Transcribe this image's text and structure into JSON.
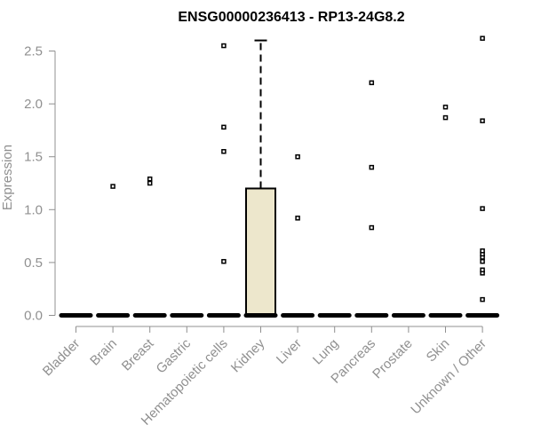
{
  "chart_data": {
    "type": "box",
    "title": "ENSG00000236413 - RP13-24G8.2",
    "xlabel": "",
    "ylabel": "Expression",
    "ylim": [
      0,
      2.65
    ],
    "yticks": [
      0.0,
      0.5,
      1.0,
      1.5,
      2.0,
      2.5
    ],
    "ytick_labels": [
      "0.0",
      "0.5",
      "1.0",
      "1.5",
      "2.0",
      "2.5"
    ],
    "grid": false,
    "categories": [
      "Bladder",
      "Brain",
      "Breast",
      "Gastric",
      "Hematopoietic cells",
      "Kidney",
      "Liver",
      "Lung",
      "Pancreas",
      "Prostate",
      "Skin",
      "Unknown / Other"
    ],
    "boxes": [
      {
        "category": "Bladder",
        "min": 0,
        "q1": 0,
        "median": 0,
        "q3": 0,
        "max": 0,
        "outliers": []
      },
      {
        "category": "Brain",
        "min": 0,
        "q1": 0,
        "median": 0,
        "q3": 0,
        "max": 0,
        "outliers": [
          1.22
        ]
      },
      {
        "category": "Breast",
        "min": 0,
        "q1": 0,
        "median": 0,
        "q3": 0,
        "max": 0,
        "outliers": [
          1.25,
          1.29
        ]
      },
      {
        "category": "Gastric",
        "min": 0,
        "q1": 0,
        "median": 0,
        "q3": 0,
        "max": 0,
        "outliers": []
      },
      {
        "category": "Hematopoietic cells",
        "min": 0,
        "q1": 0,
        "median": 0,
        "q3": 0,
        "max": 0,
        "outliers": [
          0.51,
          1.55,
          1.78,
          2.55
        ]
      },
      {
        "category": "Kidney",
        "min": 0,
        "q1": 0,
        "median": 0,
        "q3": 1.2,
        "max": 2.6,
        "outliers": []
      },
      {
        "category": "Liver",
        "min": 0,
        "q1": 0,
        "median": 0,
        "q3": 0,
        "max": 0,
        "outliers": [
          0.92,
          1.5
        ]
      },
      {
        "category": "Lung",
        "min": 0,
        "q1": 0,
        "median": 0,
        "q3": 0,
        "max": 0,
        "outliers": []
      },
      {
        "category": "Pancreas",
        "min": 0,
        "q1": 0,
        "median": 0,
        "q3": 0,
        "max": 0,
        "outliers": [
          0.83,
          1.4,
          2.2
        ]
      },
      {
        "category": "Prostate",
        "min": 0,
        "q1": 0,
        "median": 0,
        "q3": 0,
        "max": 0,
        "outliers": []
      },
      {
        "category": "Skin",
        "min": 0,
        "q1": 0,
        "median": 0,
        "q3": 0,
        "max": 0,
        "outliers": [
          1.87,
          1.97
        ]
      },
      {
        "category": "Unknown / Other",
        "min": 0,
        "q1": 0,
        "median": 0,
        "q3": 0,
        "max": 0,
        "outliers": [
          0.15,
          0.4,
          0.43,
          0.51,
          0.55,
          0.58,
          0.61,
          1.01,
          1.84,
          2.62
        ]
      }
    ],
    "colors": {
      "box_fill": "#ede7cc",
      "box_stroke": "#000000",
      "axis": "#909090",
      "outlier": "#000000"
    }
  }
}
